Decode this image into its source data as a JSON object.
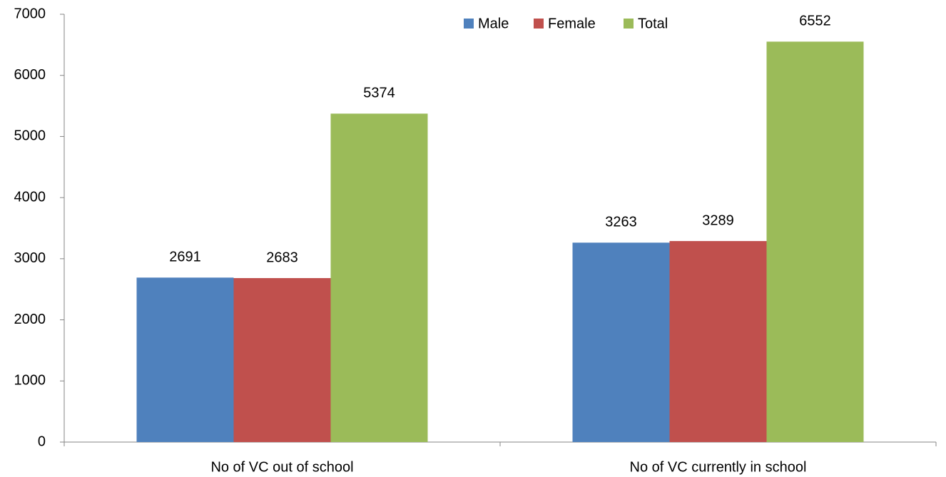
{
  "chart_data": {
    "type": "bar",
    "categories": [
      "No of VC out of school",
      "No of VC currently in school"
    ],
    "series": [
      {
        "name": "Male",
        "color": "#4f81bd",
        "values": [
          2691,
          3263
        ]
      },
      {
        "name": "Female",
        "color": "#c0504d",
        "values": [
          2683,
          3289
        ]
      },
      {
        "name": "Total",
        "color": "#9bbb59",
        "values": [
          5374,
          6552
        ]
      }
    ],
    "ylim": [
      0,
      7000
    ],
    "yticks": [
      0,
      1000,
      2000,
      3000,
      4000,
      5000,
      6000,
      7000
    ],
    "grid": false,
    "legend": "top"
  }
}
